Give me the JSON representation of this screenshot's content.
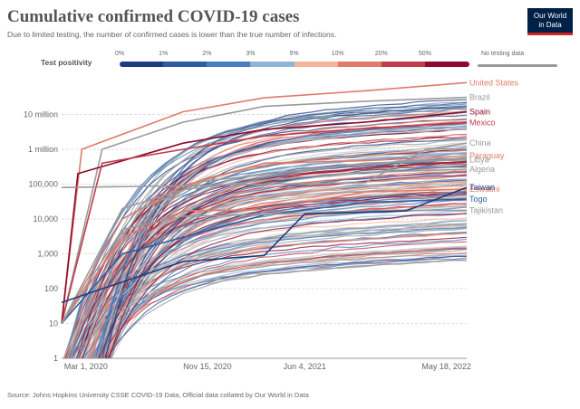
{
  "title": "Cumulative confirmed COVID-19 cases",
  "subtitle": "Due to limited testing, the number of confirmed cases is lower than the true number of infections.",
  "logo": {
    "line1": "Our World",
    "line2": "in Data"
  },
  "source": "Source: Johns Hopkins University CSSE COVID-19 Data, Official data collated by Our World in Data",
  "legend": {
    "label": "Test positivity",
    "ticks": [
      "0%",
      "1%",
      "2%",
      "3%",
      "5%",
      "10%",
      "20%",
      "50%"
    ],
    "colors": [
      "#1f3c80",
      "#2c5ea3",
      "#4a7fbd",
      "#8fb3d9",
      "#f2b59a",
      "#e07b6b",
      "#c13b4a",
      "#8c0a2d"
    ],
    "no_data_label": "No testing data",
    "no_data_color": "#9a9a9a"
  },
  "chart_data": {
    "type": "line",
    "title": "Cumulative confirmed COVID-19 cases",
    "x_ticks": [
      "Mar 1, 2020",
      "Nov 15, 2020",
      "Jun 4, 2021",
      "May 18, 2022"
    ],
    "y_scale": "log",
    "y_ticks": [
      "1",
      "10",
      "100",
      "1,000",
      "10,000",
      "100,000",
      "1 million",
      "10 million"
    ],
    "y_tick_values": [
      1,
      10,
      100,
      1000,
      10000,
      100000,
      1000000,
      10000000
    ],
    "ylim": [
      1,
      100000000
    ],
    "grid": true,
    "legend_position": "top",
    "series": [
      {
        "name": "United States",
        "color": "#e07b6b",
        "points": [
          [
            0,
            10
          ],
          [
            0.05,
            1000000
          ],
          [
            0.3,
            12000000
          ],
          [
            0.5,
            30000000
          ],
          [
            0.75,
            48000000
          ],
          [
            1,
            82000000
          ]
        ]
      },
      {
        "name": "Brazil",
        "color": "#9a9a9a",
        "points": [
          [
            0,
            10
          ],
          [
            0.1,
            1000000
          ],
          [
            0.3,
            6000000
          ],
          [
            0.5,
            17000000
          ],
          [
            0.75,
            24000000
          ],
          [
            1,
            31000000
          ]
        ]
      },
      {
        "name": "Spain",
        "color": "#8c0a2d",
        "points": [
          [
            0,
            10
          ],
          [
            0.04,
            200000
          ],
          [
            0.3,
            1500000
          ],
          [
            0.5,
            3700000
          ],
          [
            0.75,
            6000000
          ],
          [
            1,
            12000000
          ]
        ]
      },
      {
        "name": "Mexico",
        "color": "#c13b4a",
        "points": [
          [
            0,
            10
          ],
          [
            0.1,
            400000
          ],
          [
            0.3,
            1000000
          ],
          [
            0.5,
            2400000
          ],
          [
            0.75,
            4000000
          ],
          [
            1,
            5800000
          ]
        ]
      },
      {
        "name": "Paraguay",
        "color": "#e07b6b",
        "points": [
          [
            0,
            10
          ],
          [
            0.15,
            10000
          ],
          [
            0.3,
            90000
          ],
          [
            0.5,
            400000
          ],
          [
            0.75,
            470000
          ],
          [
            1,
            650000
          ]
        ]
      },
      {
        "name": "China",
        "color": "#9a9a9a",
        "points": [
          [
            0,
            80000
          ],
          [
            0.3,
            90000
          ],
          [
            0.5,
            100000
          ],
          [
            0.75,
            110000
          ],
          [
            0.9,
            1000000
          ],
          [
            1,
            1500000
          ]
        ]
      },
      {
        "name": "Libya",
        "color": "#9a9a9a",
        "points": [
          [
            0,
            10
          ],
          [
            0.2,
            20000
          ],
          [
            0.35,
            120000
          ],
          [
            0.5,
            190000
          ],
          [
            0.75,
            400000
          ],
          [
            1,
            500000
          ]
        ]
      },
      {
        "name": "Algeria",
        "color": "#9a9a9a",
        "points": [
          [
            0,
            10
          ],
          [
            0.15,
            20000
          ],
          [
            0.3,
            70000
          ],
          [
            0.5,
            130000
          ],
          [
            0.75,
            220000
          ],
          [
            1,
            266000
          ]
        ]
      },
      {
        "name": "Eswatini",
        "color": "#e07b6b",
        "points": [
          [
            0,
            10
          ],
          [
            0.15,
            3000
          ],
          [
            0.3,
            17000
          ],
          [
            0.5,
            18500
          ],
          [
            0.75,
            60000
          ],
          [
            1,
            71000
          ]
        ]
      },
      {
        "name": "Togo",
        "color": "#2c5ea3",
        "points": [
          [
            0,
            10
          ],
          [
            0.15,
            1000
          ],
          [
            0.3,
            3000
          ],
          [
            0.5,
            13000
          ],
          [
            0.75,
            30000
          ],
          [
            1,
            37000
          ]
        ]
      },
      {
        "name": "Tajikistan",
        "color": "#9a9a9a",
        "points": [
          [
            0,
            10
          ],
          [
            0.15,
            5000
          ],
          [
            0.3,
            12000
          ],
          [
            0.5,
            13400
          ],
          [
            0.75,
            17300
          ],
          [
            1,
            17800
          ]
        ]
      },
      {
        "name": "Taiwan",
        "color": "#1f3c80",
        "points": [
          [
            0,
            40
          ],
          [
            0.3,
            600
          ],
          [
            0.5,
            900
          ],
          [
            0.6,
            14000
          ],
          [
            0.85,
            17000
          ],
          [
            1,
            80000
          ]
        ]
      }
    ]
  }
}
